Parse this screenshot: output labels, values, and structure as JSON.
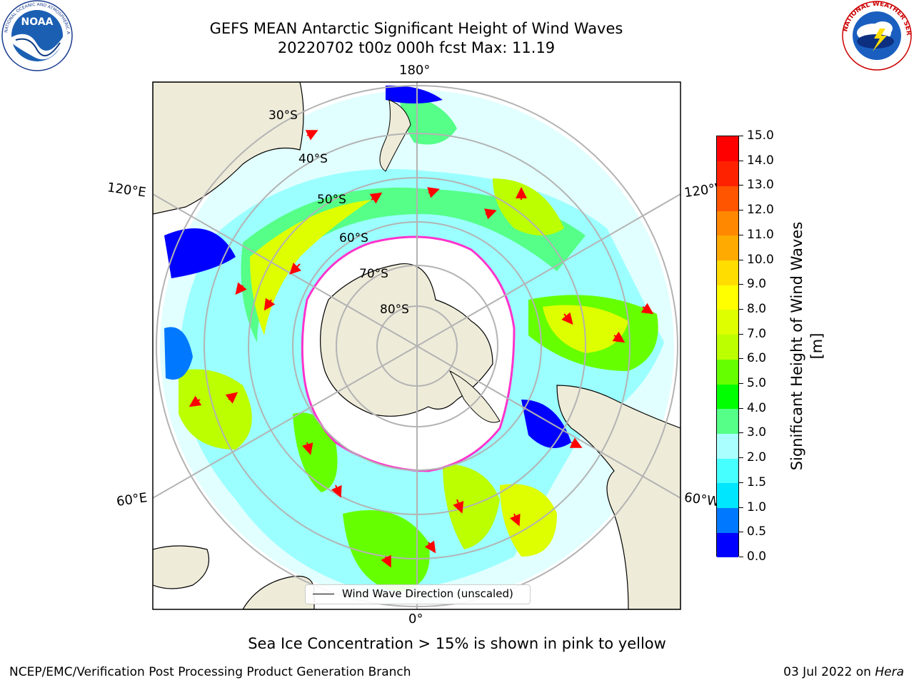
{
  "header": {
    "title_line1": "GEFS MEAN Antarctic Significant Height of Wind Waves",
    "title_line2": "20220702 t00z 000h fcst   Max: 11.19"
  },
  "logos": {
    "left": "noaa-logo",
    "right": "nws-logo"
  },
  "map": {
    "projection": "south-polar-stereographic",
    "longitude_labels": [
      "180°",
      "120°E",
      "120°W",
      "60°E",
      "60°W",
      "0°"
    ],
    "latitude_labels": [
      "30°S",
      "40°S",
      "50°S",
      "60°S",
      "70°S",
      "80°S"
    ],
    "land_color": "#eeebd9",
    "ocean_color": "#ffffff",
    "gridline_color": "#b3b3b3",
    "arrow_color": "#ff0000",
    "ice_edge_color": "#ff33cc"
  },
  "colorbar": {
    "label": "Significant Height of Wind Waves [m]",
    "ticks": [
      "0.0",
      "0.5",
      "1.0",
      "1.5",
      "2.0",
      "3.0",
      "4.0",
      "5.0",
      "6.0",
      "7.0",
      "8.0",
      "9.0",
      "10.0",
      "11.0",
      "12.0",
      "13.0",
      "14.0",
      "15.0"
    ],
    "colors": [
      "#0000ff",
      "#0078ff",
      "#00e6ff",
      "#46ffff",
      "#aaffff",
      "#55ff88",
      "#00ff00",
      "#66ff00",
      "#bbff00",
      "#ddff00",
      "#ffff00",
      "#ffdd00",
      "#ffaa00",
      "#ff8800",
      "#ff5500",
      "#ff2200",
      "#ff0000"
    ]
  },
  "legend": {
    "label": "Wind Wave Direction (unscaled)"
  },
  "footer": {
    "sea_ice_note": "Sea Ice Concentration > 15% is shown in pink to yellow",
    "credit": "NCEP/EMC/Verification Post Processing Product Generation Branch",
    "date": "03 Jul 2022 on",
    "host": "Hera"
  }
}
